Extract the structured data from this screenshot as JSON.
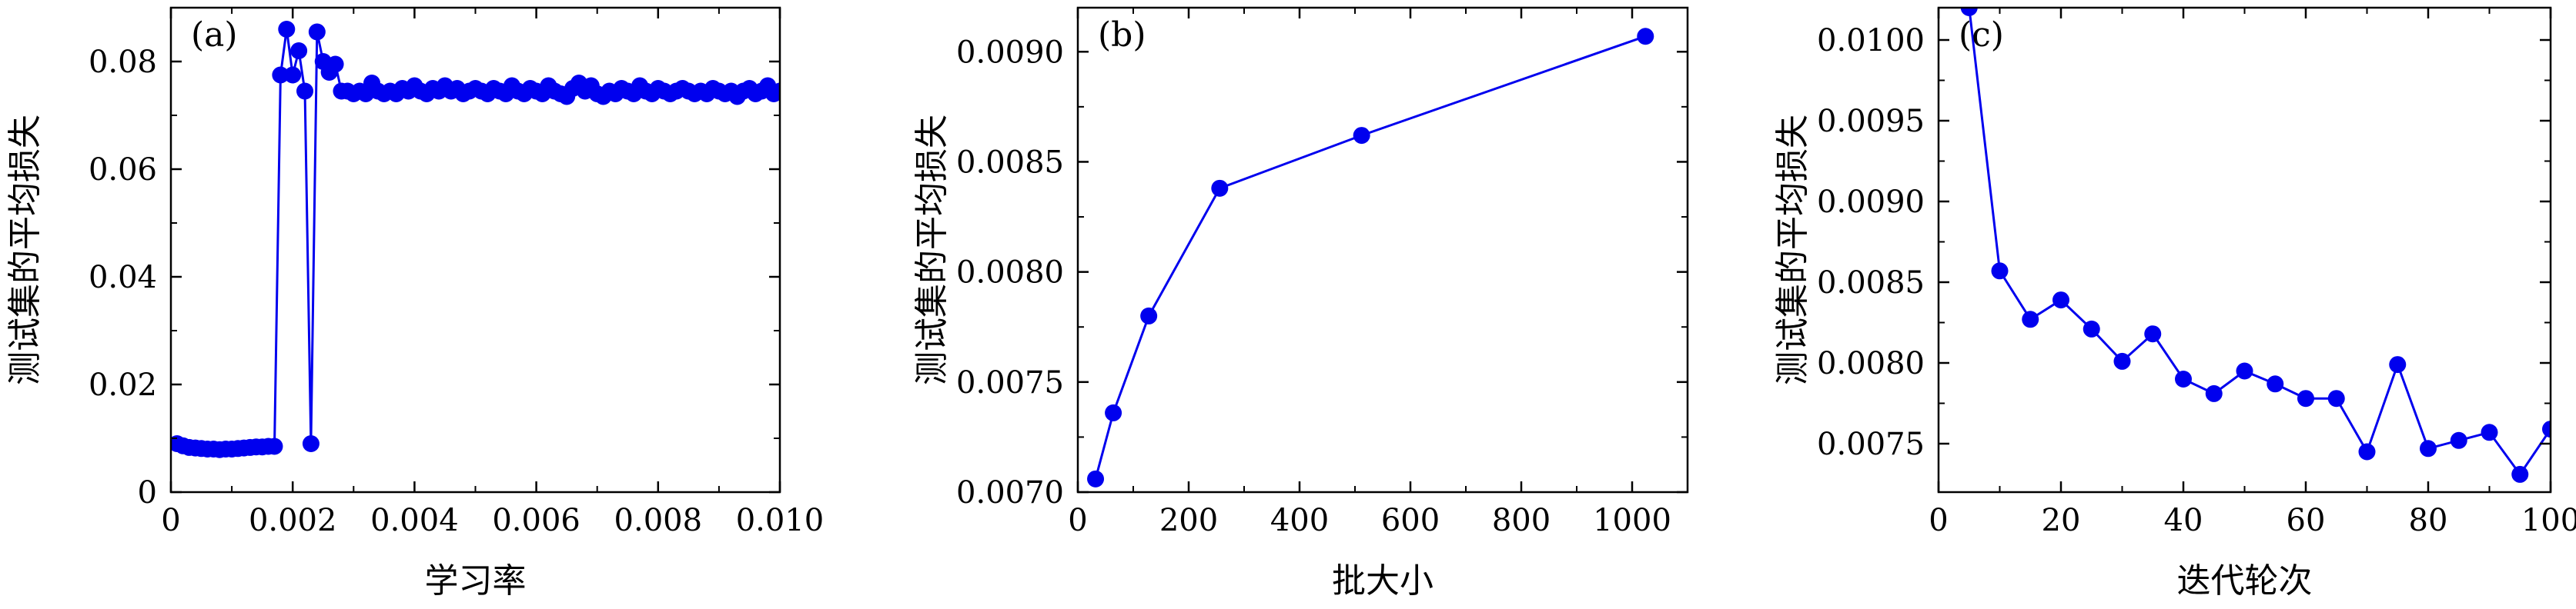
{
  "colors": {
    "series": "#0000ee",
    "axis": "#000000",
    "background": "#ffffff"
  },
  "chart_data": [
    {
      "type": "scatter",
      "panel_label": "(a)",
      "xlabel": "学习率",
      "ylabel": "测试集的平均损失",
      "xlim": [
        0,
        0.01
      ],
      "ylim": [
        0,
        0.09
      ],
      "xticks": [
        0,
        0.002,
        0.004,
        0.006,
        0.008,
        0.01
      ],
      "xtick_labels": [
        "0",
        "0.002",
        "0.004",
        "0.006",
        "0.008",
        "0.010"
      ],
      "yticks": [
        0,
        0.02,
        0.04,
        0.06,
        0.08
      ],
      "ytick_labels": [
        "0",
        "0.02",
        "0.04",
        "0.06",
        "0.08"
      ],
      "series": [
        {
          "x": [
            0.0001,
            0.0002,
            0.0003,
            0.0004,
            0.0005,
            0.0006,
            0.0007,
            0.0008,
            0.0009,
            0.001,
            0.0011,
            0.0012,
            0.0013,
            0.0014,
            0.0015,
            0.0016,
            0.0017,
            0.0018,
            0.0019,
            0.002,
            0.0021,
            0.0022,
            0.0023,
            0.0024,
            0.0025,
            0.0026,
            0.0027,
            0.0028,
            0.0029,
            0.003,
            0.0031,
            0.0032,
            0.0033,
            0.0034,
            0.0035,
            0.0036,
            0.0037,
            0.0038,
            0.0039,
            0.004,
            0.0041,
            0.0042,
            0.0043,
            0.0044,
            0.0045,
            0.0046,
            0.0047,
            0.0048,
            0.0049,
            0.005,
            0.0051,
            0.0052,
            0.0053,
            0.0054,
            0.0055,
            0.0056,
            0.0057,
            0.0058,
            0.0059,
            0.006,
            0.0061,
            0.0062,
            0.0063,
            0.0064,
            0.0065,
            0.0066,
            0.0067,
            0.0068,
            0.0069,
            0.007,
            0.0071,
            0.0072,
            0.0073,
            0.0074,
            0.0075,
            0.0076,
            0.0077,
            0.0078,
            0.0079,
            0.008,
            0.0081,
            0.0082,
            0.0083,
            0.0084,
            0.0085,
            0.0086,
            0.0087,
            0.0088,
            0.0089,
            0.009,
            0.0091,
            0.0092,
            0.0093,
            0.0094,
            0.0095,
            0.0096,
            0.0097,
            0.0098,
            0.0099,
            0.01
          ],
          "y": [
            0.009,
            0.0086,
            0.0083,
            0.0082,
            0.0081,
            0.008,
            0.008,
            0.0079,
            0.008,
            0.008,
            0.0081,
            0.0082,
            0.0083,
            0.0084,
            0.0084,
            0.0085,
            0.0085,
            0.0775,
            0.086,
            0.0775,
            0.082,
            0.0745,
            0.009,
            0.0855,
            0.08,
            0.078,
            0.0795,
            0.0745,
            0.0745,
            0.074,
            0.0745,
            0.074,
            0.076,
            0.0745,
            0.074,
            0.0745,
            0.074,
            0.075,
            0.0745,
            0.0755,
            0.0745,
            0.074,
            0.075,
            0.0745,
            0.0755,
            0.0745,
            0.075,
            0.074,
            0.0745,
            0.075,
            0.0745,
            0.074,
            0.075,
            0.0745,
            0.074,
            0.0755,
            0.0745,
            0.074,
            0.075,
            0.0745,
            0.074,
            0.0755,
            0.0745,
            0.074,
            0.0735,
            0.075,
            0.076,
            0.0745,
            0.0755,
            0.074,
            0.0735,
            0.0745,
            0.074,
            0.075,
            0.0745,
            0.074,
            0.0755,
            0.0745,
            0.074,
            0.075,
            0.0745,
            0.074,
            0.0745,
            0.075,
            0.0745,
            0.074,
            0.0745,
            0.074,
            0.075,
            0.0745,
            0.074,
            0.0745,
            0.0735,
            0.0745,
            0.075,
            0.074,
            0.0745,
            0.0755,
            0.074,
            0.0745
          ]
        }
      ]
    },
    {
      "type": "line",
      "panel_label": "(b)",
      "xlabel": "批大小",
      "ylabel": "测试集的平均损失",
      "xlim": [
        0,
        1100
      ],
      "ylim": [
        0.007,
        0.0092
      ],
      "xticks": [
        0,
        200,
        400,
        600,
        800,
        1000
      ],
      "xtick_labels": [
        "0",
        "200",
        "400",
        "600",
        "800",
        "1000"
      ],
      "yticks": [
        0.007,
        0.0075,
        0.008,
        0.0085,
        0.009
      ],
      "ytick_labels": [
        "0.0070",
        "0.0075",
        "0.0080",
        "0.0085",
        "0.0090"
      ],
      "series": [
        {
          "x": [
            32,
            64,
            128,
            256,
            512,
            1024
          ],
          "y": [
            0.00706,
            0.00736,
            0.0078,
            0.00838,
            0.00862,
            0.00907
          ]
        }
      ]
    },
    {
      "type": "line",
      "panel_label": "(c)",
      "xlabel": "迭代轮次",
      "ylabel": "测试集的平均损失",
      "xlim": [
        0,
        100
      ],
      "ylim": [
        0.0072,
        0.0102
      ],
      "xticks": [
        0,
        20,
        40,
        60,
        80,
        100
      ],
      "xtick_labels": [
        "0",
        "20",
        "40",
        "60",
        "80",
        "100"
      ],
      "yticks": [
        0.0075,
        0.008,
        0.0085,
        0.009,
        0.0095,
        0.01
      ],
      "ytick_labels": [
        "0.0075",
        "0.0080",
        "0.0085",
        "0.0090",
        "0.0095",
        "0.0100"
      ],
      "series": [
        {
          "x": [
            5,
            10,
            15,
            20,
            25,
            30,
            35,
            40,
            45,
            50,
            55,
            60,
            65,
            70,
            75,
            80,
            85,
            90,
            95,
            100
          ],
          "y": [
            0.0102,
            0.00857,
            0.00827,
            0.00839,
            0.00821,
            0.00801,
            0.00818,
            0.0079,
            0.00781,
            0.00795,
            0.00787,
            0.00778,
            0.00778,
            0.00745,
            0.00799,
            0.00747,
            0.00752,
            0.00757,
            0.00731,
            0.00759
          ]
        }
      ]
    }
  ]
}
